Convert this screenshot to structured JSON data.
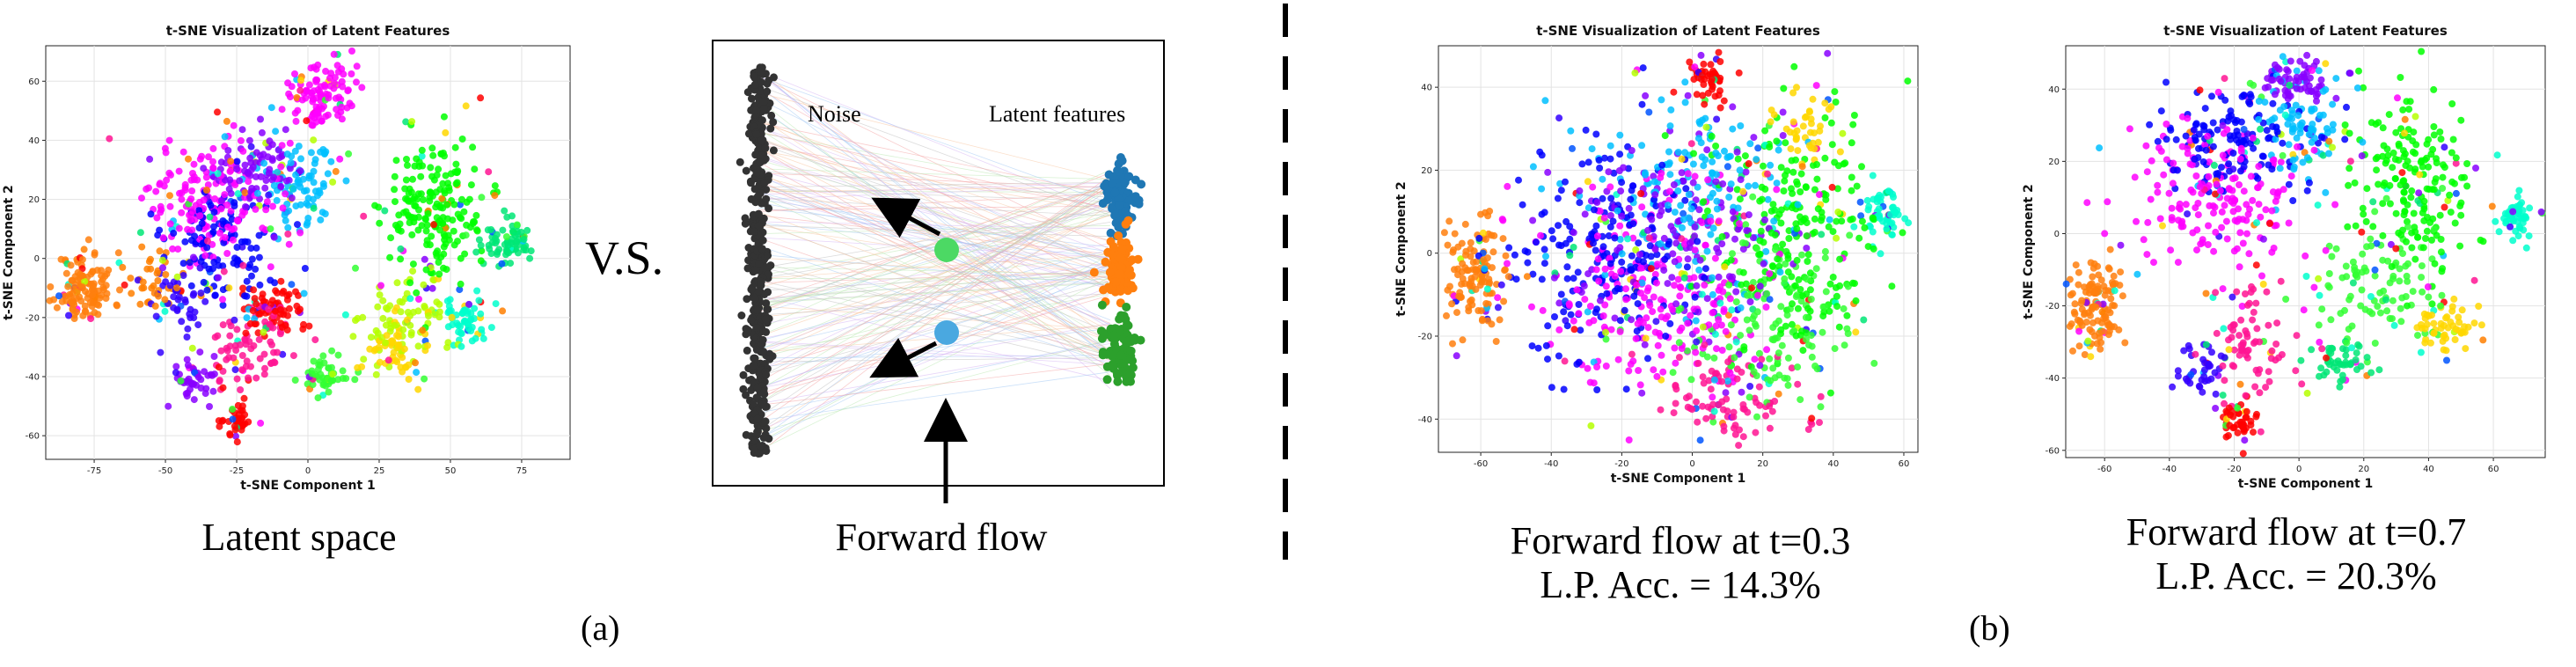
{
  "figure": {
    "vs_label": "V.S.",
    "panel_a_label": "(a)",
    "panel_b_label": "(b)",
    "captions": {
      "latent_space": "Latent space",
      "forward_flow": "Forward flow",
      "flow_t03_line1": "Forward flow at t=0.3",
      "flow_t03_line2": "L.P. Acc. = 14.3%",
      "flow_t07_line1": "Forward flow at t=0.7",
      "flow_t07_line2": "L.P. Acc. = 20.3%"
    },
    "flow_diagram": {
      "noise_label": "Noise",
      "latent_label": "Latent features",
      "noise_color": "#333333",
      "cluster_colors": [
        "#1f77b4",
        "#ff7f0e",
        "#2ca02c"
      ],
      "particle_colors": [
        "#4cd964",
        "#4aa8e0"
      ]
    },
    "palette": [
      "#ff0000",
      "#ff7f00",
      "#ffd700",
      "#b5ff00",
      "#33ff33",
      "#00e676",
      "#00ffcc",
      "#00bfff",
      "#0055ff",
      "#3300ff",
      "#8800ff",
      "#ff00ff",
      "#ff1493"
    ]
  },
  "chart_data": [
    {
      "type": "scatter",
      "title": "t-SNE Visualization of Latent Features",
      "xlabel": "t-SNE Component 1",
      "ylabel": "t-SNE Component 2",
      "xlim": [
        -92,
        92
      ],
      "ylim": [
        -68,
        72
      ],
      "xticks": [
        -75,
        -50,
        -25,
        0,
        25,
        50,
        75
      ],
      "yticks": [
        -60,
        -40,
        -20,
        0,
        20,
        40,
        60
      ],
      "grid": true,
      "clusters": [
        {
          "color": "#ff7f0e",
          "cx": -78,
          "cy": -10,
          "sx": 5,
          "sy": 6,
          "n": 110
        },
        {
          "color": "#ff00ff",
          "cx": -35,
          "cy": 20,
          "sx": 12,
          "sy": 10,
          "n": 140
        },
        {
          "color": "#0000ff",
          "cx": -30,
          "cy": 5,
          "sx": 10,
          "sy": 10,
          "n": 110
        },
        {
          "color": "#8800ff",
          "cx": -18,
          "cy": 30,
          "sx": 8,
          "sy": 8,
          "n": 80
        },
        {
          "color": "#00bfff",
          "cx": -5,
          "cy": 25,
          "sx": 9,
          "sy": 8,
          "n": 80
        },
        {
          "color": "#ff00ff",
          "cx": 5,
          "cy": 55,
          "sx": 6,
          "sy": 7,
          "n": 100
        },
        {
          "color": "#ff0000",
          "cx": -12,
          "cy": -18,
          "sx": 6,
          "sy": 4,
          "n": 60
        },
        {
          "color": "#ff1493",
          "cx": -20,
          "cy": -30,
          "sx": 7,
          "sy": 6,
          "n": 70
        },
        {
          "color": "#8800ff",
          "cx": -40,
          "cy": -40,
          "sx": 4,
          "sy": 4,
          "n": 40
        },
        {
          "color": "#ff0000",
          "cx": -25,
          "cy": -55,
          "sx": 3,
          "sy": 3,
          "n": 35
        },
        {
          "color": "#33ff33",
          "cx": 5,
          "cy": -40,
          "sx": 4,
          "sy": 3,
          "n": 45
        },
        {
          "color": "#00ff00",
          "cx": 45,
          "cy": 15,
          "sx": 9,
          "sy": 12,
          "n": 180
        },
        {
          "color": "#b5ff00",
          "cx": 35,
          "cy": -20,
          "sx": 8,
          "sy": 8,
          "n": 70
        },
        {
          "color": "#ffd700",
          "cx": 30,
          "cy": -30,
          "sx": 6,
          "sy": 5,
          "n": 50
        },
        {
          "color": "#00ffcc",
          "cx": 55,
          "cy": -20,
          "sx": 4,
          "sy": 4,
          "n": 50
        },
        {
          "color": "#00e676",
          "cx": 70,
          "cy": 5,
          "sx": 5,
          "sy": 4,
          "n": 60
        },
        {
          "color": "#ff7f00",
          "cx": -55,
          "cy": -8,
          "sx": 5,
          "sy": 6,
          "n": 35
        },
        {
          "color": "#3300ff",
          "cx": -45,
          "cy": -15,
          "sx": 6,
          "sy": 6,
          "n": 40
        }
      ]
    },
    {
      "type": "scatter",
      "title": "t-SNE Visualization of Latent Features",
      "xlabel": "t-SNE Component 1",
      "ylabel": "t-SNE Component 2",
      "xlim": [
        -72,
        64
      ],
      "ylim": [
        -48,
        50
      ],
      "xticks": [
        -60,
        -40,
        -20,
        0,
        20,
        40,
        60
      ],
      "yticks": [
        -40,
        -20,
        0,
        20,
        40
      ],
      "grid": true,
      "clusters": [
        {
          "color": "#ff7f0e",
          "cx": -62,
          "cy": -5,
          "sx": 4,
          "sy": 6,
          "n": 110
        },
        {
          "color": "#0000ff",
          "cx": -25,
          "cy": 0,
          "sx": 14,
          "sy": 12,
          "n": 200
        },
        {
          "color": "#ff00ff",
          "cx": -10,
          "cy": -10,
          "sx": 15,
          "sy": 13,
          "n": 200
        },
        {
          "color": "#8800ff",
          "cx": -5,
          "cy": 5,
          "sx": 15,
          "sy": 14,
          "n": 160
        },
        {
          "color": "#00ff00",
          "cx": 30,
          "cy": 5,
          "sx": 12,
          "sy": 14,
          "n": 220
        },
        {
          "color": "#33ff33",
          "cx": 25,
          "cy": -15,
          "sx": 12,
          "sy": 10,
          "n": 120
        },
        {
          "color": "#00bfff",
          "cx": 0,
          "cy": 15,
          "sx": 14,
          "sy": 12,
          "n": 140
        },
        {
          "color": "#ff0000",
          "cx": 5,
          "cy": 42,
          "sx": 3,
          "sy": 3,
          "n": 40
        },
        {
          "color": "#ffd700",
          "cx": 30,
          "cy": 30,
          "sx": 5,
          "sy": 5,
          "n": 40
        },
        {
          "color": "#00ffcc",
          "cx": 55,
          "cy": 10,
          "sx": 3,
          "sy": 3,
          "n": 50
        },
        {
          "color": "#ff1493",
          "cx": 10,
          "cy": -35,
          "sx": 10,
          "sy": 5,
          "n": 80
        }
      ]
    },
    {
      "type": "scatter",
      "title": "t-SNE Visualization of Latent Features",
      "xlabel": "t-SNE Component 1",
      "ylabel": "t-SNE Component 2",
      "xlim": [
        -72,
        76
      ],
      "ylim": [
        -62,
        52
      ],
      "xticks": [
        -60,
        -40,
        -20,
        0,
        20,
        40,
        60
      ],
      "yticks": [
        -60,
        -40,
        -20,
        0,
        20,
        40
      ],
      "grid": true,
      "clusters": [
        {
          "color": "#ff7f0e",
          "cx": -63,
          "cy": -20,
          "sx": 4,
          "sy": 6,
          "n": 110
        },
        {
          "color": "#ff00ff",
          "cx": -25,
          "cy": 10,
          "sx": 12,
          "sy": 10,
          "n": 170
        },
        {
          "color": "#0000ff",
          "cx": -20,
          "cy": 25,
          "sx": 12,
          "sy": 8,
          "n": 130
        },
        {
          "color": "#00bfff",
          "cx": 0,
          "cy": 30,
          "sx": 8,
          "sy": 8,
          "n": 80
        },
        {
          "color": "#8800ff",
          "cx": 0,
          "cy": 42,
          "sx": 6,
          "sy": 4,
          "n": 60
        },
        {
          "color": "#00ff00",
          "cx": 35,
          "cy": 15,
          "sx": 9,
          "sy": 12,
          "n": 170
        },
        {
          "color": "#33ff33",
          "cx": 25,
          "cy": -15,
          "sx": 10,
          "sy": 8,
          "n": 90
        },
        {
          "color": "#ffd700",
          "cx": 45,
          "cy": -25,
          "sx": 5,
          "sy": 4,
          "n": 50
        },
        {
          "color": "#00e676",
          "cx": 12,
          "cy": -35,
          "sx": 4,
          "sy": 4,
          "n": 45
        },
        {
          "color": "#00ffcc",
          "cx": 67,
          "cy": 5,
          "sx": 3,
          "sy": 3,
          "n": 45
        },
        {
          "color": "#ff0000",
          "cx": -18,
          "cy": -52,
          "sx": 3,
          "sy": 3,
          "n": 40
        },
        {
          "color": "#ff1493",
          "cx": -15,
          "cy": -30,
          "sx": 7,
          "sy": 8,
          "n": 70
        },
        {
          "color": "#3300ff",
          "cx": -30,
          "cy": -38,
          "sx": 4,
          "sy": 4,
          "n": 35
        }
      ]
    }
  ]
}
